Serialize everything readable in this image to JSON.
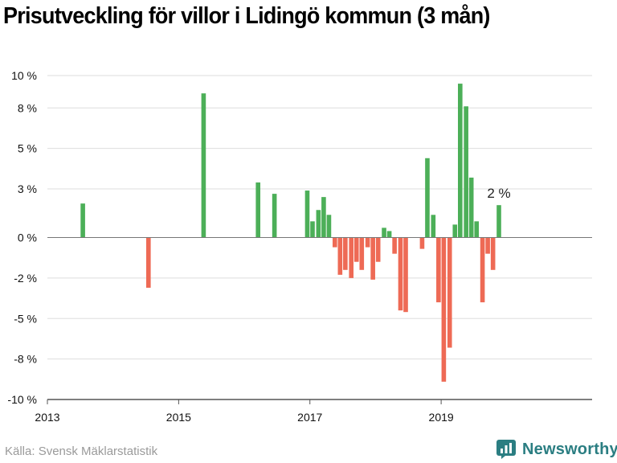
{
  "header": {
    "title": "Prisutveckling för villor i Lidingö kommun (3 mån)"
  },
  "footer": {
    "source": "Källa: Svensk Mäklarstatistik",
    "brand": "Newsworthy"
  },
  "colors": {
    "positive": "#4caf58",
    "negative": "#ee6a55",
    "grid": "#dddddd",
    "axis": "#555555",
    "brand": "#2b7e82"
  },
  "chart_data": {
    "type": "bar",
    "title": "Prisutveckling för villor i Lidingö kommun (3 mån)",
    "xlabel": "",
    "ylabel": "",
    "grid": true,
    "ylim": [
      -10,
      10
    ],
    "xlim": [
      2013.0,
      2021.3
    ],
    "y_ticks": [
      {
        "value": 10,
        "label": "10 %"
      },
      {
        "value": 8,
        "label": "8 %"
      },
      {
        "value": 5.5,
        "label": "5 %"
      },
      {
        "value": 3,
        "label": "3 %"
      },
      {
        "value": 0,
        "label": "0 %"
      },
      {
        "value": -2.5,
        "label": "-2 %"
      },
      {
        "value": -5,
        "label": "-5 %"
      },
      {
        "value": -7.5,
        "label": "-8 %"
      },
      {
        "value": -10,
        "label": "-10 %"
      }
    ],
    "x_ticks": [
      {
        "value": 2013,
        "label": "2013"
      },
      {
        "value": 2015,
        "label": "2015"
      },
      {
        "value": 2017,
        "label": "2017"
      },
      {
        "value": 2019,
        "label": "2019"
      }
    ],
    "x": [
      2013.54,
      2014.54,
      2015.38,
      2016.21,
      2016.46,
      2016.96,
      2017.04,
      2017.13,
      2017.21,
      2017.29,
      2017.38,
      2017.46,
      2017.54,
      2017.63,
      2017.71,
      2017.79,
      2017.88,
      2017.96,
      2018.04,
      2018.13,
      2018.21,
      2018.29,
      2018.38,
      2018.46,
      2018.54,
      2018.71,
      2018.79,
      2018.88,
      2018.96,
      2019.04,
      2019.13,
      2019.21,
      2019.29,
      2019.38,
      2019.46,
      2019.54,
      2019.63,
      2019.71,
      2019.79,
      2019.88,
      2019.96
    ],
    "values": [
      2.1,
      -3.1,
      8.9,
      3.4,
      2.7,
      2.9,
      1.0,
      1.7,
      2.5,
      1.4,
      -0.6,
      -2.3,
      -2.0,
      -2.5,
      -1.5,
      -2.0,
      -0.6,
      -2.6,
      -1.5,
      0.6,
      0.4,
      -1.0,
      -4.5,
      -4.6,
      0.0,
      -0.7,
      4.9,
      1.4,
      -4.0,
      -8.9,
      -6.8,
      0.8,
      9.5,
      8.1,
      3.7,
      1.0,
      -4.0,
      -1.0,
      -2.0,
      2.0,
      0.0
    ],
    "annotations": [
      {
        "text": "2 %",
        "x": 2019.88,
        "y": 2.0
      }
    ]
  }
}
